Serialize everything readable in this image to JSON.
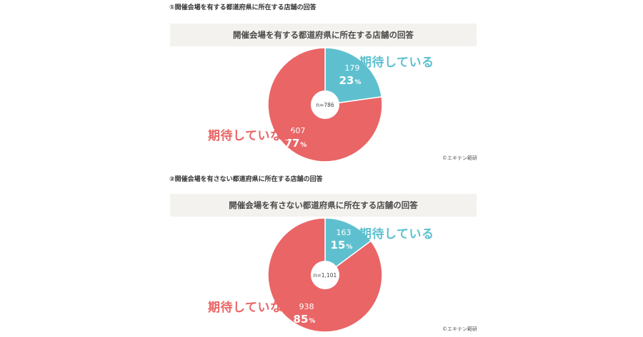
{
  "chart_data": [
    {
      "type": "pie",
      "section_title": "①開催会場を有する都道府県に所在する店舗の回答",
      "title": "開催会場を有する都道府県に所在する店舗の回答",
      "n_label": "n=786",
      "credit": "©エキテン範研",
      "series": [
        {
          "name": "期待している",
          "count": 179,
          "count_label": "179",
          "percent": 23,
          "percent_label": "23",
          "color": "#5ec0cf"
        },
        {
          "name": "期待していない",
          "count": 607,
          "count_label": "607",
          "percent": 77,
          "percent_label": "77",
          "color": "#ea6566"
        }
      ],
      "percent_sign": "%"
    },
    {
      "type": "pie",
      "section_title": "②開催会場を有さない都道府県に所在する店舗の回答",
      "title": "開催会場を有さない都道府県に所在する店舗の回答",
      "n_label": "n=1,101",
      "credit": "©エキテン範研",
      "series": [
        {
          "name": "期待している",
          "count": 163,
          "count_label": "163",
          "percent": 15,
          "percent_label": "15",
          "color": "#5ec0cf"
        },
        {
          "name": "期待していない",
          "count": 938,
          "count_label": "938",
          "percent": 85,
          "percent_label": "85",
          "color": "#ea6566"
        }
      ],
      "percent_sign": "%"
    }
  ]
}
